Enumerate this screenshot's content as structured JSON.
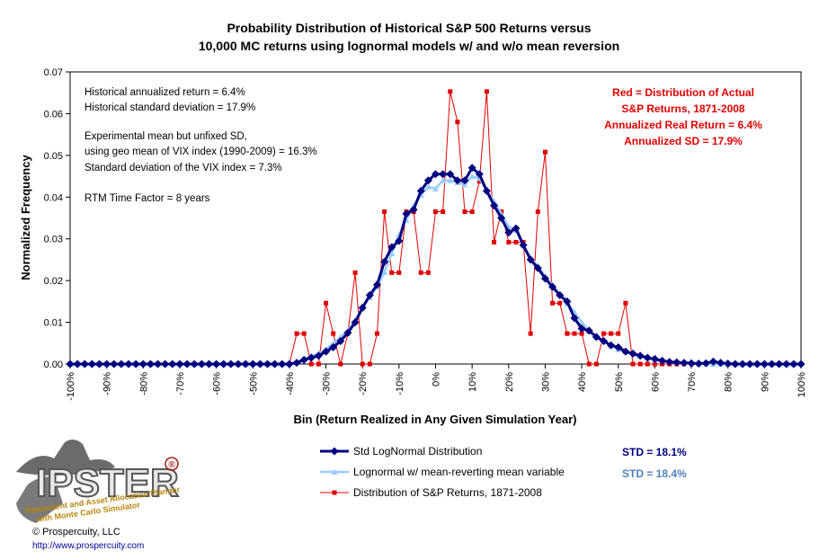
{
  "title": {
    "line1": "Probability Distribution of Historical S&P 500 Returns versus",
    "line2": "10,000 MC returns using lognormal models w/ and w/o mean reversion"
  },
  "notes": {
    "hist_return": "Historical annualized return = 6.4%",
    "hist_sd": "Historical standard deviation = 17.9%",
    "exp_line1": "Experimental mean but unfixed SD,",
    "exp_line2": "using geo mean of VIX index (1990-2009) = 16.3%",
    "exp_line3": "Standard deviation of the VIX index = 7.3%",
    "rtm": "RTM Time Factor = 8 years"
  },
  "red_note": {
    "line1": "Red = Distribution of Actual",
    "line2": "S&P Returns, 1871-2008",
    "line3": "Annualized Real Return = 6.4%",
    "line4": "Annualized SD = 17.9%"
  },
  "legend": {
    "std_label": "STD = 18.1%",
    "mr_label": "STD = 18.4%"
  },
  "footer": {
    "copyright": "© Prospercuity, LLC",
    "url": "http://www.prospercuity.com",
    "logo_text": "IPSTER",
    "logo_reg": "®",
    "logo_tagline1": "Retirement and Asset Allocation Planner",
    "logo_tagline2": "with Monte Carlo Simulator"
  },
  "colors": {
    "std": "#000080",
    "mr": "#99ccff",
    "hist": "#e00000",
    "std_text": "#000080",
    "mr_text": "#4f81bd"
  },
  "chart_data": {
    "type": "line",
    "xlabel": "Bin (Return Realized in Any Given Simulation Year)",
    "ylabel": "Normalized Frequency",
    "xlim": [
      -100,
      100
    ],
    "ylim": [
      0,
      0.07
    ],
    "x_ticks": [
      -100,
      -90,
      -80,
      -70,
      -60,
      -50,
      -40,
      -30,
      -20,
      -10,
      0,
      10,
      20,
      30,
      40,
      50,
      60,
      70,
      80,
      90,
      100
    ],
    "x_tick_labels": [
      "-100%",
      "-90%",
      "-80%",
      "-70%",
      "-60%",
      "-50%",
      "-40%",
      "-30%",
      "-20%",
      "-10%",
      "0%",
      "10%",
      "20%",
      "30%",
      "40%",
      "50%",
      "60%",
      "70%",
      "80%",
      "90%",
      "100%"
    ],
    "y_ticks": [
      0,
      0.01,
      0.02,
      0.03,
      0.04,
      0.05,
      0.06,
      0.07
    ],
    "y_tick_labels": [
      "0.00",
      "0.01",
      "0.02",
      "0.03",
      "0.04",
      "0.05",
      "0.06",
      "0.07"
    ],
    "x": [
      -100,
      -98,
      -96,
      -94,
      -92,
      -90,
      -88,
      -86,
      -84,
      -82,
      -80,
      -78,
      -76,
      -74,
      -72,
      -70,
      -68,
      -66,
      -64,
      -62,
      -60,
      -58,
      -56,
      -54,
      -52,
      -50,
      -48,
      -46,
      -44,
      -42,
      -40,
      -38,
      -36,
      -34,
      -32,
      -30,
      -28,
      -26,
      -24,
      -22,
      -20,
      -18,
      -16,
      -14,
      -12,
      -10,
      -8,
      -6,
      -4,
      -2,
      0,
      2,
      4,
      6,
      8,
      10,
      12,
      14,
      16,
      18,
      20,
      22,
      24,
      26,
      28,
      30,
      32,
      34,
      36,
      38,
      40,
      42,
      44,
      46,
      48,
      50,
      52,
      54,
      56,
      58,
      60,
      62,
      64,
      66,
      68,
      70,
      72,
      74,
      76,
      78,
      80,
      82,
      84,
      86,
      88,
      90,
      92,
      94,
      96,
      98,
      100
    ],
    "series": [
      {
        "name": "Std LogNormal Distribution",
        "marker": "diamond",
        "values": [
          0,
          0,
          0,
          0,
          0,
          0,
          0,
          0,
          0,
          0,
          0,
          0,
          0,
          0,
          0,
          0,
          0,
          0,
          0,
          0,
          0,
          0,
          0,
          0,
          0,
          0,
          0,
          0,
          0,
          0,
          0,
          0.0003,
          0.001,
          0.0015,
          0.002,
          0.003,
          0.004,
          0.0055,
          0.0075,
          0.01,
          0.0135,
          0.0165,
          0.019,
          0.0245,
          0.028,
          0.0295,
          0.036,
          0.037,
          0.0415,
          0.044,
          0.0455,
          0.0455,
          0.0455,
          0.044,
          0.044,
          0.047,
          0.0455,
          0.0415,
          0.038,
          0.035,
          0.0315,
          0.0325,
          0.0285,
          0.025,
          0.023,
          0.0205,
          0.0185,
          0.0165,
          0.015,
          0.011,
          0.0085,
          0.008,
          0.0065,
          0.0055,
          0.0045,
          0.004,
          0.003,
          0.0025,
          0.002,
          0.0015,
          0.0012,
          0.0008,
          0.0005,
          0.0004,
          0.0003,
          0.0002,
          0.0001,
          0.0002,
          0.0006,
          0.0003,
          0.0001,
          0,
          0,
          0,
          0,
          0,
          0,
          0,
          0,
          0,
          0
        ]
      },
      {
        "name": "Lognormal w/ mean-reverting mean variable",
        "marker": "triangle",
        "values": [
          0,
          0,
          0,
          0,
          0,
          0,
          0,
          0,
          0,
          0,
          0,
          0,
          0,
          0,
          0,
          0,
          0,
          0,
          0,
          0,
          0,
          0,
          0,
          0,
          0,
          0,
          0,
          0,
          0,
          0,
          0,
          0.0005,
          0.0012,
          0.002,
          0.0025,
          0.0035,
          0.005,
          0.0065,
          0.008,
          0.0105,
          0.0135,
          0.016,
          0.0185,
          0.022,
          0.0265,
          0.031,
          0.0345,
          0.038,
          0.0405,
          0.0425,
          0.042,
          0.044,
          0.044,
          0.0435,
          0.043,
          0.045,
          0.0445,
          0.0415,
          0.039,
          0.036,
          0.033,
          0.032,
          0.0285,
          0.0255,
          0.0235,
          0.021,
          0.019,
          0.0165,
          0.0145,
          0.0125,
          0.01,
          0.008,
          0.0065,
          0.0055,
          0.0045,
          0.0035,
          0.003,
          0.0025,
          0.002,
          0.0015,
          0.001,
          0.0008,
          0.0006,
          0.0004,
          0.0003,
          0.0002,
          0.0001,
          0.0001,
          0,
          0,
          0,
          0,
          0,
          0,
          0,
          0,
          0,
          0,
          0,
          0,
          0
        ]
      },
      {
        "name": "Distribution of S&P Returns, 1871-2008",
        "marker": "square",
        "values": [
          0,
          0,
          0,
          0,
          0,
          0,
          0,
          0,
          0,
          0,
          0,
          0,
          0,
          0,
          0,
          0,
          0,
          0,
          0,
          0,
          0,
          0,
          0,
          0,
          0,
          0,
          0,
          0,
          0,
          0,
          0,
          0.0073,
          0.0073,
          0,
          0,
          0.0146,
          0.0073,
          0,
          0.0073,
          0.0219,
          0,
          0,
          0.0073,
          0.0365,
          0.0219,
          0.0219,
          0.0365,
          0.0365,
          0.0219,
          0.0219,
          0.0365,
          0.0365,
          0.0653,
          0.058,
          0.0365,
          0.0365,
          0.0438,
          0.0653,
          0.0292,
          0.0365,
          0.0292,
          0.0292,
          0.0292,
          0.0073,
          0.0365,
          0.0508,
          0.0146,
          0.0146,
          0.0073,
          0.0073,
          0.0073,
          0,
          0,
          0.0073,
          0.0073,
          0.0073,
          0.0146,
          0,
          0,
          0,
          0,
          0,
          0,
          0,
          0,
          0,
          0,
          0,
          0,
          0,
          0,
          0,
          0,
          0,
          0,
          0,
          0,
          0,
          0,
          0,
          0
        ]
      }
    ],
    "legend_position": "bottom-center",
    "grid": false
  }
}
